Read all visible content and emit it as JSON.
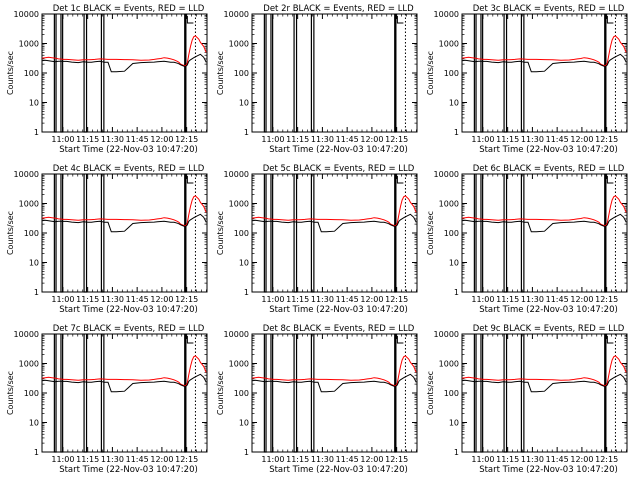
{
  "figure": {
    "type": "grid-of-line-plots",
    "colors": {
      "events": "#000000",
      "lld": "#ff0000",
      "background": "#ffffff"
    }
  },
  "chart_data": [
    {
      "id": 1,
      "type": "line",
      "title": "Det 1c BLACK = Events, RED = LLD",
      "xlabel": "Start Time (22-Nov-03 10:47:20)",
      "ylabel": "Counts/sec",
      "yscale": "log",
      "ylim": [
        1,
        10000
      ],
      "yticks": [
        "1",
        "10",
        "100",
        "1000",
        "10000"
      ],
      "xticks": [
        "11:00",
        "11:15",
        "11:30",
        "11:45",
        "12:00",
        "12:15"
      ],
      "profile": "full"
    },
    {
      "id": 2,
      "type": "line",
      "title": "Det 2r BLACK = Events, RED = LLD",
      "xlabel": "Start Time (22-Nov-03 10:47:20)",
      "ylabel": "Counts/sec",
      "yscale": "log",
      "ylim": [
        1,
        10000
      ],
      "yticks": [
        "1",
        "10",
        "100",
        "1000",
        "10000"
      ],
      "xticks": [
        "11:00",
        "11:15",
        "11:30",
        "11:45",
        "12:00",
        "12:15"
      ],
      "profile": "none"
    },
    {
      "id": 3,
      "type": "line",
      "title": "Det 3c BLACK = Events, RED = LLD",
      "xlabel": "Start Time (22-Nov-03 10:47:20)",
      "ylabel": "Counts/sec",
      "yscale": "log",
      "ylim": [
        1,
        10000
      ],
      "yticks": [
        "1",
        "10",
        "100",
        "1000",
        "10000"
      ],
      "xticks": [
        "11:00",
        "11:15",
        "11:30",
        "11:45",
        "12:00",
        "12:15"
      ],
      "profile": "full"
    },
    {
      "id": 4,
      "type": "line",
      "title": "Det 4c BLACK = Events, RED = LLD",
      "xlabel": "Start Time (22-Nov-03 10:47:20)",
      "ylabel": "Counts/sec",
      "yscale": "log",
      "ylim": [
        1,
        10000
      ],
      "yticks": [
        "1",
        "10",
        "100",
        "1000",
        "10000"
      ],
      "xticks": [
        "11:00",
        "11:15",
        "11:30",
        "11:45",
        "12:00",
        "12:15"
      ],
      "profile": "full"
    },
    {
      "id": 5,
      "type": "line",
      "title": "Det 5c BLACK = Events, RED = LLD",
      "xlabel": "Start Time (22-Nov-03 10:47:20)",
      "ylabel": "Counts/sec",
      "yscale": "log",
      "ylim": [
        1,
        10000
      ],
      "yticks": [
        "1",
        "10",
        "100",
        "1000",
        "10000"
      ],
      "xticks": [
        "11:00",
        "11:15",
        "11:30",
        "11:45",
        "12:00",
        "12:15"
      ],
      "profile": "full"
    },
    {
      "id": 6,
      "type": "line",
      "title": "Det 6c BLACK = Events, RED = LLD",
      "xlabel": "Start Time (22-Nov-03 10:47:20)",
      "ylabel": "Counts/sec",
      "yscale": "log",
      "ylim": [
        1,
        10000
      ],
      "yticks": [
        "1",
        "10",
        "100",
        "1000",
        "10000"
      ],
      "xticks": [
        "11:00",
        "11:15",
        "11:30",
        "11:45",
        "12:00",
        "12:15"
      ],
      "profile": "full"
    },
    {
      "id": 7,
      "type": "line",
      "title": "Det 7c BLACK = Events, RED = LLD",
      "xlabel": "Start Time (22-Nov-03 10:47:20)",
      "ylabel": "Counts/sec",
      "yscale": "log",
      "ylim": [
        1,
        10000
      ],
      "yticks": [
        "1",
        "10",
        "100",
        "1000",
        "10000"
      ],
      "xticks": [
        "11:00",
        "11:15",
        "11:30",
        "11:45",
        "12:00",
        "12:15"
      ],
      "profile": "full"
    },
    {
      "id": 8,
      "type": "line",
      "title": "Det 8c BLACK = Events, RED = LLD",
      "xlabel": "Start Time (22-Nov-03 10:47:20)",
      "ylabel": "Counts/sec",
      "yscale": "log",
      "ylim": [
        1,
        10000
      ],
      "yticks": [
        "1",
        "10",
        "100",
        "1000",
        "10000"
      ],
      "xticks": [
        "11:00",
        "11:15",
        "11:30",
        "11:45",
        "12:00",
        "12:15"
      ],
      "profile": "full"
    },
    {
      "id": 9,
      "type": "line",
      "title": "Det 9c BLACK = Events, RED = LLD",
      "xlabel": "Start Time (22-Nov-03 10:47:20)",
      "ylabel": "Counts/sec",
      "yscale": "log",
      "ylim": [
        1,
        10000
      ],
      "yticks": [
        "1",
        "10",
        "100",
        "1000",
        "10000"
      ],
      "xticks": [
        "11:00",
        "11:15",
        "11:30",
        "11:45",
        "12:00",
        "12:15"
      ],
      "profile": "full"
    }
  ],
  "shared_series": {
    "xticks_min": [
      12.67,
      27.67,
      42.67,
      57.67,
      72.67,
      87.67
    ],
    "xrange_min": [
      0,
      100
    ],
    "events": {
      "name": "Events",
      "x": [
        0,
        2,
        4,
        6,
        8,
        10,
        12,
        13,
        15,
        18,
        22,
        25,
        28,
        30,
        32,
        35,
        38,
        40,
        42,
        45,
        50,
        55,
        60,
        65,
        68,
        70,
        72,
        74,
        76,
        78,
        80,
        82,
        83,
        84,
        85,
        86,
        87,
        88,
        89,
        90,
        92,
        94,
        96,
        98,
        99.5
      ],
      "y": [
        260,
        270,
        260,
        250,
        240,
        250,
        250,
        248,
        248,
        235,
        225,
        240,
        230,
        230,
        240,
        250,
        230,
        230,
        110,
        110,
        115,
        210,
        225,
        230,
        235,
        240,
        245,
        250,
        240,
        230,
        230,
        215,
        205,
        190,
        180,
        170,
        165,
        185,
        250,
        280,
        330,
        380,
        430,
        340,
        230
      ]
    },
    "lld": {
      "name": "LLD",
      "x": [
        0,
        2,
        4,
        6,
        8,
        10,
        12,
        13,
        15,
        18,
        22,
        25,
        28,
        30,
        32,
        35,
        38,
        40,
        42,
        45,
        50,
        55,
        60,
        65,
        68,
        70,
        72,
        74,
        76,
        78,
        80,
        82,
        83,
        84,
        85,
        86,
        87,
        88,
        89,
        90,
        91,
        92,
        93,
        94,
        95,
        96,
        98,
        99.5
      ],
      "y": [
        320,
        330,
        340,
        330,
        320,
        300,
        295,
        290,
        290,
        280,
        270,
        280,
        280,
        285,
        290,
        300,
        295,
        290,
        290,
        290,
        285,
        280,
        270,
        275,
        290,
        300,
        310,
        330,
        320,
        300,
        280,
        250,
        230,
        200,
        190,
        180,
        175,
        210,
        420,
        800,
        1300,
        1700,
        1800,
        1600,
        1400,
        1100,
        800,
        500
      ]
    },
    "gaps_min": [
      {
        "start": 7.5,
        "end": 8.5,
        "depth": 1
      },
      {
        "start": 11.5,
        "end": 12.5,
        "depth": 1
      },
      {
        "start": 25.5,
        "end": 27.0,
        "depth": 1
      },
      {
        "start": 36.0,
        "end": 37.5,
        "depth": 1
      },
      {
        "start": 86.5,
        "end": 87.2,
        "depth": 3
      }
    ],
    "dotted_markers_min": [
      86.9,
      93.0
    ]
  }
}
